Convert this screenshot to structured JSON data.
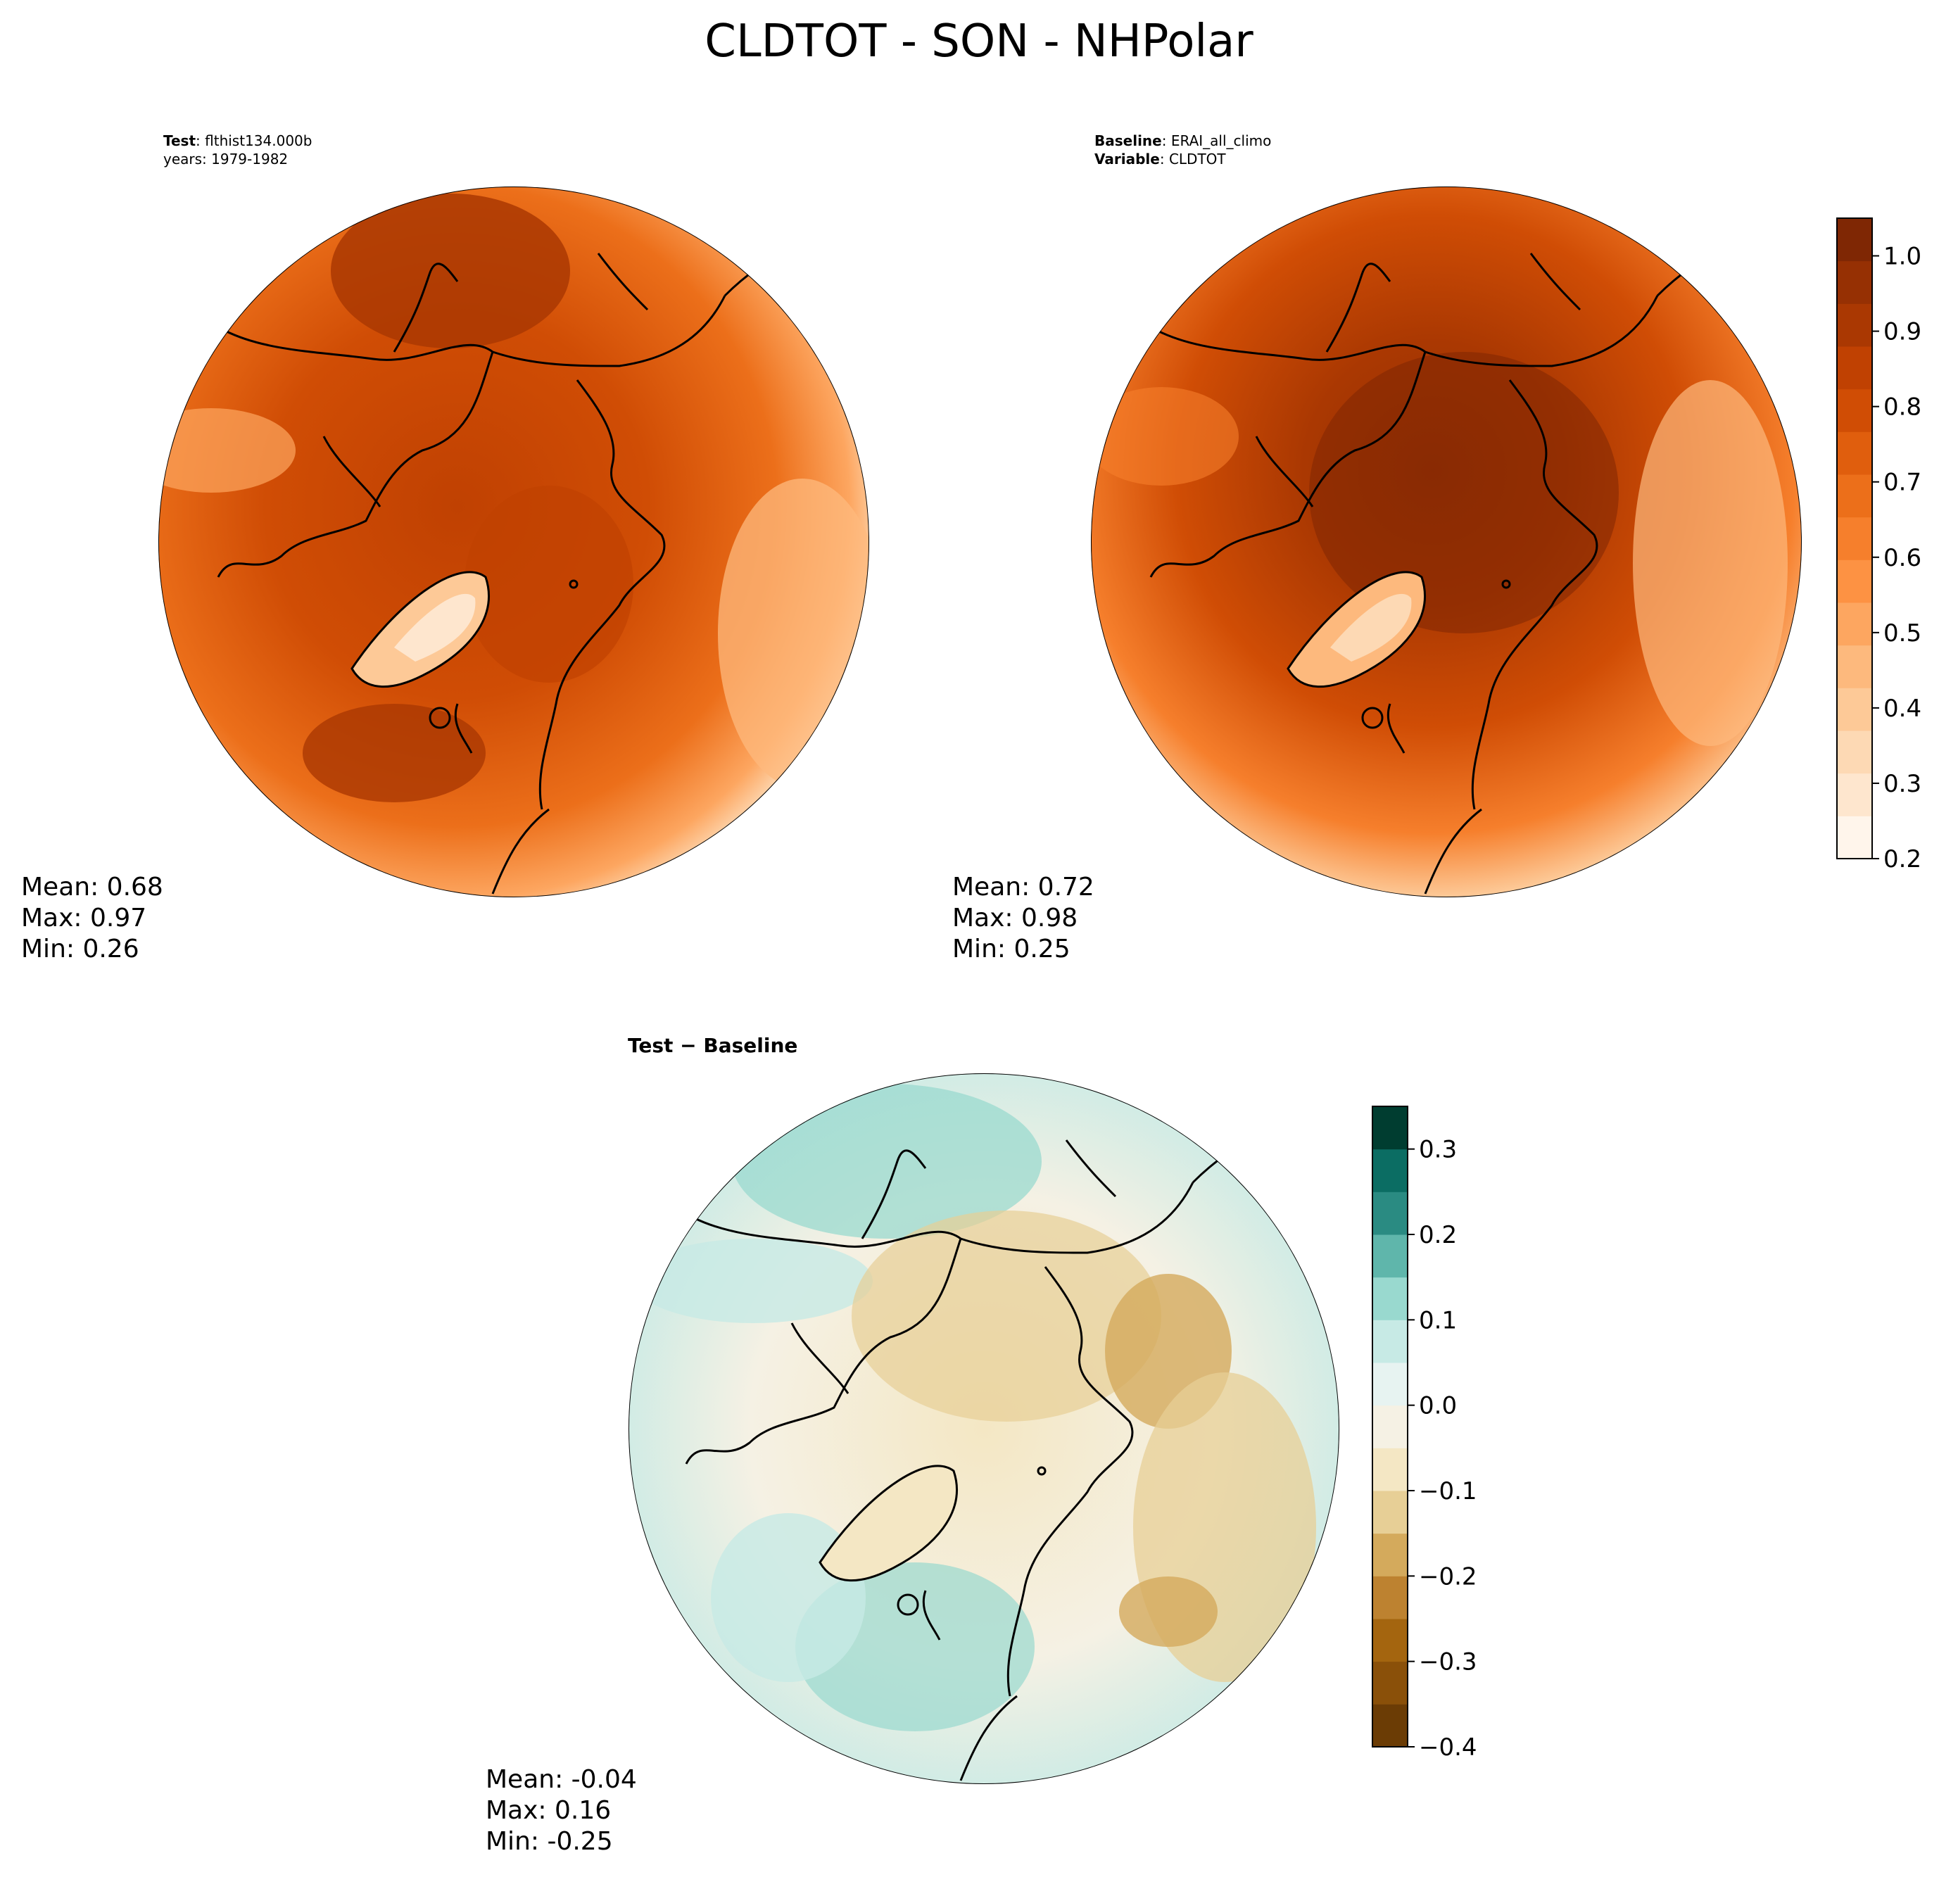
{
  "figure": {
    "title": "CLDTOT - SON - NHPolar"
  },
  "panels": {
    "test": {
      "header_bold": "Test",
      "header_value": "flthist134.000b",
      "header_line2": "years: 1979-1982",
      "stats": {
        "mean": "Mean:  0.68",
        "max": "Max:  0.97",
        "min": "Min:  0.26"
      }
    },
    "baseline": {
      "header_bold": "Baseline",
      "header_value": "ERAI_all_climo",
      "header2_bold": "Variable",
      "header2_value": "CLDTOT",
      "stats": {
        "mean": "Mean:  0.72",
        "max": "Max:  0.98",
        "min": "Min:  0.25"
      }
    },
    "diff": {
      "header": "Test − Baseline",
      "stats": {
        "mean": "Mean: -0.04",
        "max": "Max:  0.16",
        "min": "Min: -0.25"
      }
    }
  },
  "colorbars": {
    "main": {
      "ticks": [
        "0.2",
        "0.3",
        "0.4",
        "0.5",
        "0.6",
        "0.7",
        "0.8",
        "0.9",
        "1.0"
      ],
      "range": [
        0.2,
        1.05
      ],
      "colors": [
        "#fff5eb",
        "#fee6ce",
        "#fdd9b4",
        "#fdc997",
        "#fdb97d",
        "#fda660",
        "#fd9243",
        "#f67f2c",
        "#ec6f1a",
        "#e05e0d",
        "#d04d05",
        "#c04102",
        "#aa3802",
        "#963003",
        "#7f2704"
      ]
    },
    "diff": {
      "ticks": [
        "0.3",
        "0.2",
        "0.1",
        "0.0",
        "−0.1",
        "−0.2",
        "−0.3",
        "−0.4"
      ],
      "range": [
        -0.4,
        0.35
      ],
      "colors": [
        "#6b3c05",
        "#8a5009",
        "#a4650f",
        "#bd8230",
        "#d4aa5c",
        "#e7cf96",
        "#f4e7c4",
        "#f5f1e4",
        "#e7f3f1",
        "#c7eae5",
        "#99d9cf",
        "#5fb6ab",
        "#2a8b82",
        "#0b6d63",
        "#003d30"
      ]
    }
  }
}
